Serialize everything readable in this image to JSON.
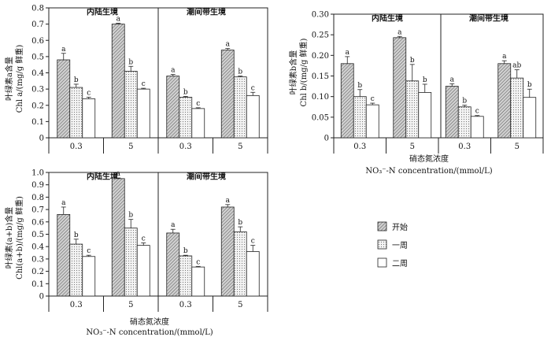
{
  "legend": {
    "items": [
      "开始",
      "一周",
      "二周"
    ],
    "fills": [
      "#b3b3b3",
      "#e8e8e8",
      "#ffffff"
    ]
  },
  "chart_data": [
    {
      "type": "bar",
      "regions": [
        "内陆生境",
        "潮间带生境"
      ],
      "categories": [
        "0.3",
        "5",
        "0.3",
        "5"
      ],
      "series": [
        {
          "name": "开始",
          "values": [
            0.48,
            0.7,
            0.38,
            0.54
          ],
          "errors": [
            0.04,
            0.005,
            0.01,
            0.01
          ],
          "letters": [
            "a",
            "a",
            "a",
            "a"
          ]
        },
        {
          "name": "一周",
          "values": [
            0.31,
            0.41,
            0.25,
            0.375
          ],
          "errors": [
            0.02,
            0.03,
            0.005,
            0.005
          ],
          "letters": [
            "b",
            "b",
            "b",
            "b"
          ]
        },
        {
          "name": "二周",
          "values": [
            0.24,
            0.3,
            0.18,
            0.26
          ],
          "errors": [
            0.01,
            0.005,
            0.005,
            0.02
          ],
          "letters": [
            "c",
            "c",
            "c",
            "c"
          ]
        }
      ],
      "ylabel_cn": "叶绿素a含量",
      "ylabel_en": "Chl a/(mg/g 鲜重)",
      "ylim": [
        0,
        0.8
      ],
      "yticks": [
        "0",
        "0.1",
        "0.2",
        "0.3",
        "0.4",
        "0.5",
        "0.6",
        "0.7",
        "0.8"
      ]
    },
    {
      "type": "bar",
      "regions": [
        "内陆生境",
        "潮间带生境"
      ],
      "categories": [
        "0.3",
        "5",
        "0.3",
        "5"
      ],
      "series": [
        {
          "name": "开始",
          "values": [
            0.18,
            0.243,
            0.125,
            0.18
          ],
          "errors": [
            0.017,
            0.003,
            0.006,
            0.007
          ],
          "letters": [
            "a",
            "a",
            "a",
            "a"
          ]
        },
        {
          "name": "一周",
          "values": [
            0.1,
            0.138,
            0.075,
            0.145
          ],
          "errors": [
            0.017,
            0.04,
            0.004,
            0.02
          ],
          "letters": [
            "b",
            "b",
            "b",
            "ab"
          ]
        },
        {
          "name": "二周",
          "values": [
            0.08,
            0.11,
            0.052,
            0.098
          ],
          "errors": [
            0.004,
            0.02,
            0.002,
            0.02
          ],
          "letters": [
            "c",
            "b",
            "c",
            "b"
          ]
        }
      ],
      "ylabel_cn": "叶绿素b含量",
      "ylabel_en": "Chl b/(mg/g 鲜重)",
      "ylim": [
        0,
        0.3
      ],
      "yticks": [
        "0",
        "0.05",
        "0.10",
        "0.15",
        "0.20",
        "0.25",
        "0.30"
      ],
      "xlabel_cn": "硝态氮浓度",
      "xlabel_en": "NO₃⁻-N concentration/(mmol/L)"
    },
    {
      "type": "bar",
      "regions": [
        "内陆生境",
        "潮间带生境"
      ],
      "categories": [
        "0.3",
        "5",
        "0.3",
        "5"
      ],
      "series": [
        {
          "name": "开始",
          "values": [
            0.66,
            0.95,
            0.51,
            0.72
          ],
          "errors": [
            0.06,
            0.005,
            0.03,
            0.02
          ],
          "letters": [
            "a",
            "a",
            "a",
            "a"
          ]
        },
        {
          "name": "一周",
          "values": [
            0.42,
            0.55,
            0.325,
            0.52
          ],
          "errors": [
            0.04,
            0.07,
            0.005,
            0.04
          ],
          "letters": [
            "b",
            "b",
            "b",
            "b"
          ]
        },
        {
          "name": "二周",
          "values": [
            0.32,
            0.41,
            0.235,
            0.36
          ],
          "errors": [
            0.01,
            0.02,
            0.005,
            0.05
          ],
          "letters": [
            "c",
            "c",
            "c",
            "c"
          ]
        }
      ],
      "ylabel_cn": "叶绿素(a+b)含量",
      "ylabel_en": "Chl(a+b)/(mg/g 鲜重)",
      "ylim": [
        0,
        1.0
      ],
      "yticks": [
        "0",
        "0.1",
        "0.2",
        "0.3",
        "0.4",
        "0.5",
        "0.6",
        "0.7",
        "0.8",
        "0.9",
        "1.0"
      ],
      "xlabel_cn": "硝态氮浓度",
      "xlabel_en": "NO₃⁻-N concentration/(mmol/L)"
    }
  ]
}
